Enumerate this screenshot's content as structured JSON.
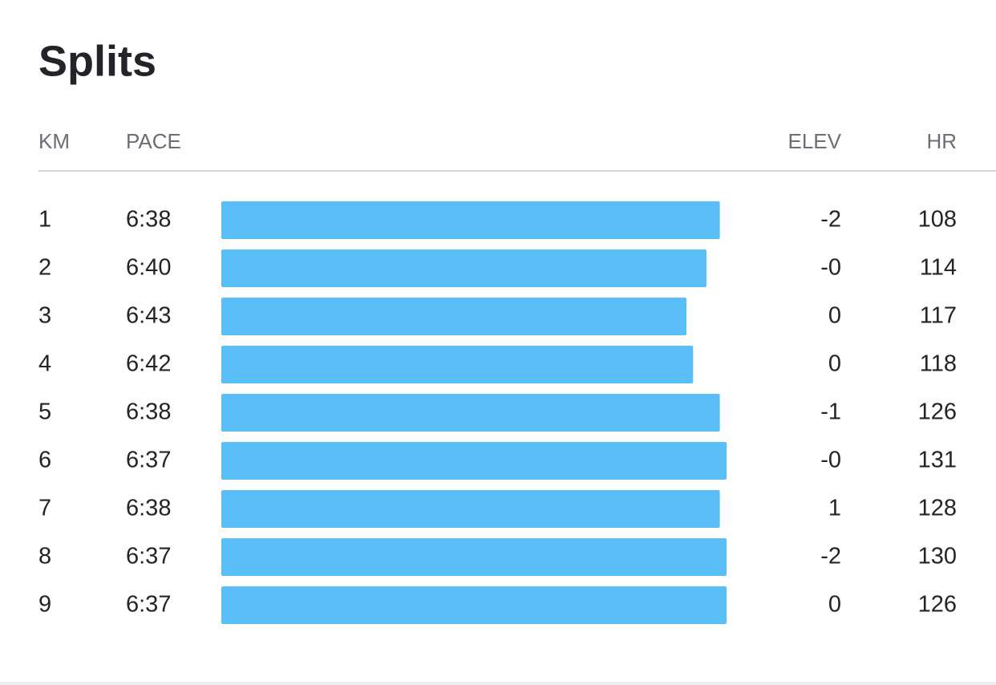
{
  "title": "Splits",
  "columns": {
    "km": "KM",
    "pace": "PACE",
    "elev": "ELEV",
    "hr": "HR"
  },
  "rows": [
    {
      "km": 1,
      "pace": "6:38",
      "elev": -2,
      "hr": 108
    },
    {
      "km": 2,
      "pace": "6:40",
      "elev": "-0",
      "hr": 114
    },
    {
      "km": 3,
      "pace": "6:43",
      "elev": 0,
      "hr": 117
    },
    {
      "km": 4,
      "pace": "6:42",
      "elev": 0,
      "hr": 118
    },
    {
      "km": 5,
      "pace": "6:38",
      "elev": -1,
      "hr": 126
    },
    {
      "km": 6,
      "pace": "6:37",
      "elev": "-0",
      "hr": 131
    },
    {
      "km": 7,
      "pace": "6:38",
      "elev": 1,
      "hr": 128
    },
    {
      "km": 8,
      "pace": "6:37",
      "elev": -2,
      "hr": 130
    },
    {
      "km": 9,
      "pace": "6:37",
      "elev": 0,
      "hr": 126
    }
  ]
}
